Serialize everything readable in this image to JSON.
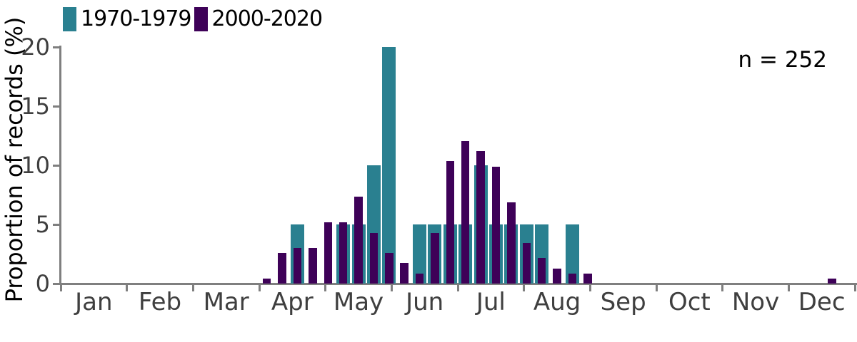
{
  "chart_data": {
    "type": "bar",
    "title": "",
    "xlabel": "",
    "ylabel": "Proportion of records (%)",
    "annotation": "n = 252",
    "ylim": [
      0,
      20
    ],
    "yticks": [
      0,
      5,
      10,
      15,
      20
    ],
    "months": [
      "Jan",
      "Feb",
      "Mar",
      "Apr",
      "May",
      "Jun",
      "Jul",
      "Aug",
      "Sep",
      "Oct",
      "Nov",
      "Dec"
    ],
    "weeks_per_year": 52,
    "grid": "off",
    "legend_position": "top-left",
    "legend": [
      {
        "label": "1970-1979",
        "color": "#2a8090"
      },
      {
        "label": "2000-2020",
        "color": "#3e0158"
      }
    ],
    "series": [
      {
        "name": "1970-1979",
        "color": "#2a8090",
        "unit": "percent of records per week",
        "points": [
          {
            "week": 16,
            "value": 5.0
          },
          {
            "week": 19,
            "value": 5.0
          },
          {
            "week": 20,
            "value": 5.0
          },
          {
            "week": 21,
            "value": 10.0
          },
          {
            "week": 22,
            "value": 20.0
          },
          {
            "week": 24,
            "value": 5.0
          },
          {
            "week": 25,
            "value": 5.0
          },
          {
            "week": 26,
            "value": 5.0
          },
          {
            "week": 27,
            "value": 5.0
          },
          {
            "week": 28,
            "value": 10.0
          },
          {
            "week": 29,
            "value": 5.0
          },
          {
            "week": 30,
            "value": 5.0
          },
          {
            "week": 31,
            "value": 5.0
          },
          {
            "week": 32,
            "value": 5.0
          },
          {
            "week": 34,
            "value": 5.0
          }
        ]
      },
      {
        "name": "2000-2020",
        "color": "#3e0158",
        "unit": "percent of records per week",
        "points": [
          {
            "week": 14,
            "value": 0.43
          },
          {
            "week": 15,
            "value": 2.59
          },
          {
            "week": 16,
            "value": 3.02
          },
          {
            "week": 17,
            "value": 3.02
          },
          {
            "week": 18,
            "value": 5.17
          },
          {
            "week": 19,
            "value": 5.17
          },
          {
            "week": 20,
            "value": 7.33
          },
          {
            "week": 21,
            "value": 4.31
          },
          {
            "week": 22,
            "value": 2.59
          },
          {
            "week": 23,
            "value": 1.72
          },
          {
            "week": 24,
            "value": 0.86
          },
          {
            "week": 25,
            "value": 4.31
          },
          {
            "week": 26,
            "value": 10.34
          },
          {
            "week": 27,
            "value": 12.07
          },
          {
            "week": 28,
            "value": 11.21
          },
          {
            "week": 29,
            "value": 9.91
          },
          {
            "week": 30,
            "value": 6.9
          },
          {
            "week": 31,
            "value": 3.45
          },
          {
            "week": 32,
            "value": 2.16
          },
          {
            "week": 33,
            "value": 1.29
          },
          {
            "week": 34,
            "value": 0.86
          },
          {
            "week": 35,
            "value": 0.86
          },
          {
            "week": 51,
            "value": 0.43
          }
        ]
      }
    ],
    "colors": {
      "axis": "#7f7f7f",
      "tick_text": "#3f3f3f",
      "text": "#000000",
      "background": "#ffffff"
    }
  }
}
